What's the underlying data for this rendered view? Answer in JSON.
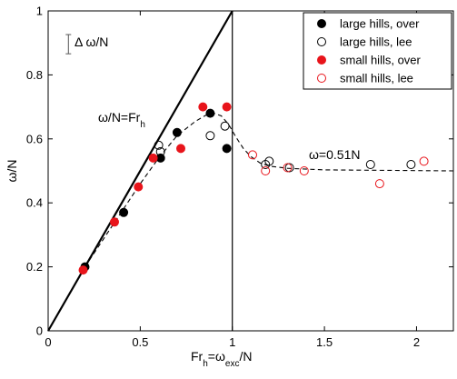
{
  "chart_data": {
    "type": "scatter",
    "title": "",
    "xlabel": {
      "base": "Fr",
      "sub1": "h",
      "mid": "=ω",
      "sub2": "exc",
      "tail": "/N"
    },
    "ylabel": "ω/N",
    "xlim": [
      0,
      2.2
    ],
    "ylim": [
      0,
      1
    ],
    "xticks": [
      0,
      0.5,
      1,
      1.5,
      2
    ],
    "xtick_labels": [
      "0",
      "0.5",
      "1",
      "1.5",
      "2"
    ],
    "yticks": [
      0,
      0.2,
      0.4,
      0.6,
      0.8,
      1
    ],
    "ytick_labels": [
      "0",
      "0.2",
      "0.4",
      "0.6",
      "0.8",
      "1"
    ],
    "legend_position": "top-right",
    "series": [
      {
        "name": "large hills, over",
        "marker": "filled-circle",
        "color": "#000000",
        "points": [
          [
            0.2,
            0.2
          ],
          [
            0.41,
            0.37
          ],
          [
            0.61,
            0.54
          ],
          [
            0.7,
            0.62
          ],
          [
            0.88,
            0.68
          ],
          [
            0.97,
            0.57
          ]
        ]
      },
      {
        "name": "large hills, lee",
        "marker": "open-circle",
        "color": "#000000",
        "points": [
          [
            0.6,
            0.58
          ],
          [
            0.61,
            0.56
          ],
          [
            0.88,
            0.61
          ],
          [
            0.96,
            0.64
          ],
          [
            1.18,
            0.52
          ],
          [
            1.2,
            0.53
          ],
          [
            1.31,
            0.51
          ],
          [
            1.75,
            0.52
          ],
          [
            1.97,
            0.52
          ]
        ]
      },
      {
        "name": "small hills, over",
        "marker": "filled-circle",
        "color": "#e8141b",
        "points": [
          [
            0.19,
            0.19
          ],
          [
            0.36,
            0.34
          ],
          [
            0.49,
            0.45
          ],
          [
            0.57,
            0.54
          ],
          [
            0.72,
            0.57
          ],
          [
            0.84,
            0.7
          ],
          [
            0.97,
            0.7
          ]
        ]
      },
      {
        "name": "small hills, lee",
        "marker": "open-circle",
        "color": "#e8141b",
        "points": [
          [
            1.11,
            0.55
          ],
          [
            1.18,
            0.5
          ],
          [
            1.3,
            0.51
          ],
          [
            1.39,
            0.5
          ],
          [
            1.8,
            0.46
          ],
          [
            2.04,
            0.53
          ]
        ]
      }
    ],
    "lines": [
      {
        "name": "ω/N=Fr_h",
        "style": "solid-thick",
        "x": [
          0,
          1
        ],
        "y": [
          0,
          1
        ]
      },
      {
        "name": "vertical-line",
        "style": "solid-thin",
        "x": [
          1,
          1
        ],
        "y": [
          0,
          1
        ]
      },
      {
        "name": "fit-curve",
        "style": "dashed",
        "x": [
          0.2,
          0.35,
          0.5,
          0.6,
          0.7,
          0.8,
          0.86,
          0.9,
          0.94,
          0.98,
          1.02,
          1.06,
          1.1,
          1.15,
          1.2,
          1.3,
          1.5,
          2.2
        ],
        "y": [
          0.2,
          0.33,
          0.46,
          0.54,
          0.61,
          0.655,
          0.675,
          0.68,
          0.672,
          0.645,
          0.605,
          0.57,
          0.545,
          0.525,
          0.515,
          0.508,
          0.503,
          0.5
        ]
      }
    ],
    "annotations": {
      "line_label": {
        "base": "ω/N=Fr",
        "sub": "h"
      },
      "asymptote_label": "ω=0.51N",
      "error_bar_label": "Δ ω/N",
      "error_bar": {
        "x": 0.11,
        "center": 0.896,
        "half_width": 0.03
      }
    }
  }
}
